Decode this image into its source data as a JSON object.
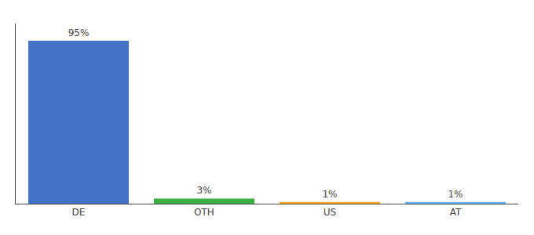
{
  "chart_data": {
    "type": "bar",
    "categories": [
      "DE",
      "OTH",
      "US",
      "AT"
    ],
    "values": [
      95,
      3,
      1,
      1
    ],
    "value_labels": [
      "95%",
      "3%",
      "1%",
      "1%"
    ],
    "data_labels": true,
    "colors": [
      "#4472C4",
      "#3CB043",
      "#FFA726",
      "#64B5F6"
    ],
    "ylim": [
      0,
      105
    ],
    "tick_labels": "x",
    "grid": false
  }
}
